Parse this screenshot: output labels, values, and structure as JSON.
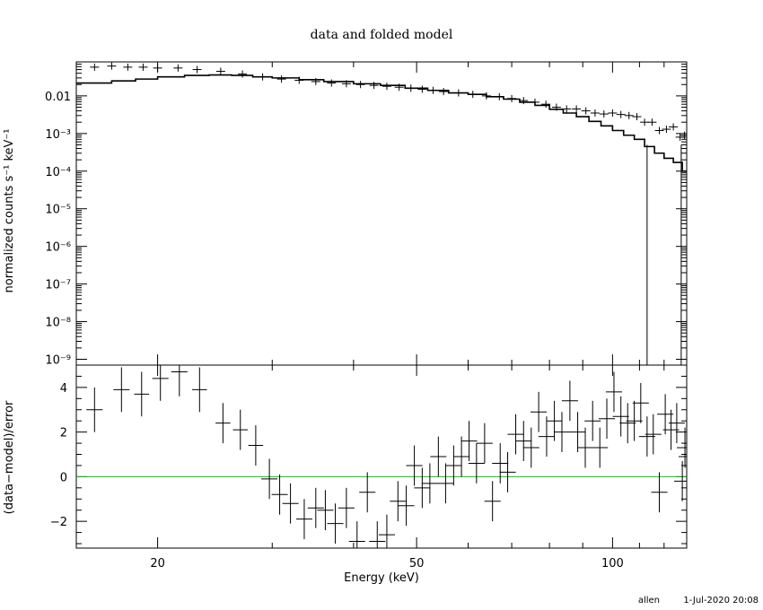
{
  "chart_data": [
    {
      "type": "scatter",
      "title": "data and folded model",
      "ylabel": "normalized counts s⁻¹ keV⁻¹",
      "xlabel": "",
      "xscale": "log",
      "yscale": "log",
      "xlim": [
        15,
        130
      ],
      "ylim": [
        7e-10,
        0.08
      ],
      "y_tick_labels": [
        "0.01",
        "10⁻³",
        "10⁻⁴",
        "10⁻⁵",
        "10⁻⁶",
        "10⁻⁷",
        "10⁻⁸",
        "10⁻⁹"
      ],
      "series": [
        {
          "role": "data",
          "points": [
            [
              16.0,
              0.058,
              0.6
            ],
            [
              17.0,
              0.062,
              0.6
            ],
            [
              18.0,
              0.058,
              0.5
            ],
            [
              19.0,
              0.058,
              0.5
            ],
            [
              20.0,
              0.055,
              0.5
            ],
            [
              21.5,
              0.055,
              0.5
            ],
            [
              23.0,
              0.05,
              0.5
            ],
            [
              25.0,
              0.045,
              0.5
            ],
            [
              27.0,
              0.038,
              0.5
            ],
            [
              29.0,
              0.032,
              0.5
            ],
            [
              31.0,
              0.028,
              0.5
            ],
            [
              33.0,
              0.026,
              0.5
            ],
            [
              35.0,
              0.024,
              0.5
            ],
            [
              37.0,
              0.022,
              0.5
            ],
            [
              39.0,
              0.021,
              0.5
            ],
            [
              41.0,
              0.02,
              0.5
            ],
            [
              43.0,
              0.019,
              0.5
            ],
            [
              45.0,
              0.018,
              0.5
            ],
            [
              47.0,
              0.017,
              0.5
            ],
            [
              49.0,
              0.016,
              0.5
            ],
            [
              51.0,
              0.015,
              0.5
            ],
            [
              53.0,
              0.014,
              0.5
            ],
            [
              55.0,
              0.013,
              0.5
            ],
            [
              58.0,
              0.012,
              0.5
            ],
            [
              61.0,
              0.011,
              0.5
            ],
            [
              64.0,
              0.01,
              0.5
            ],
            [
              67.0,
              0.0095,
              0.5
            ],
            [
              70.0,
              0.0085,
              0.5
            ],
            [
              73.0,
              0.0075,
              0.5
            ],
            [
              76.0,
              0.0068,
              0.5
            ],
            [
              79.0,
              0.006,
              0.5
            ],
            [
              82.0,
              0.005,
              0.6
            ],
            [
              85.0,
              0.0045,
              0.6
            ],
            [
              88.0,
              0.0045,
              0.6
            ],
            [
              91.0,
              0.004,
              0.6
            ],
            [
              94.0,
              0.0035,
              0.6
            ],
            [
              97.0,
              0.0033,
              0.6
            ],
            [
              100.0,
              0.0035,
              0.6
            ],
            [
              103.0,
              0.0032,
              0.6
            ],
            [
              106.0,
              0.003,
              0.6
            ],
            [
              109.0,
              0.0028,
              0.6
            ],
            [
              112.0,
              0.002,
              0.6
            ],
            [
              115.0,
              0.002,
              0.6
            ],
            [
              118.0,
              0.0012,
              0.6
            ],
            [
              121.0,
              0.0013,
              0.6
            ],
            [
              124.0,
              0.0015,
              0.6
            ],
            [
              127.0,
              0.0008,
              0.6
            ],
            [
              129.0,
              0.0009,
              0.6
            ]
          ]
        },
        {
          "role": "model",
          "steps": [
            [
              15.0,
              0.022
            ],
            [
              17.0,
              0.025
            ],
            [
              18.5,
              0.028
            ],
            [
              20.0,
              0.032
            ],
            [
              22.0,
              0.035
            ],
            [
              24.0,
              0.036
            ],
            [
              26.0,
              0.035
            ],
            [
              28.0,
              0.032
            ],
            [
              30.0,
              0.03
            ],
            [
              33.0,
              0.027
            ],
            [
              36.0,
              0.024
            ],
            [
              40.0,
              0.021
            ],
            [
              44.0,
              0.019
            ],
            [
              48.0,
              0.016
            ],
            [
              52.0,
              0.014
            ],
            [
              56.0,
              0.012
            ],
            [
              60.0,
              0.011
            ],
            [
              64.0,
              0.0095
            ],
            [
              68.0,
              0.0082
            ],
            [
              72.0,
              0.0068
            ],
            [
              76.0,
              0.0056
            ],
            [
              80.0,
              0.0044
            ],
            [
              84.0,
              0.0035
            ],
            [
              88.0,
              0.0028
            ],
            [
              92.0,
              0.0021
            ],
            [
              96.0,
              0.0016
            ],
            [
              100.0,
              0.0012
            ],
            [
              104.0,
              0.0009
            ],
            [
              108.0,
              0.0007
            ],
            [
              112.0,
              0.00045
            ],
            [
              116.0,
              0.0003
            ],
            [
              120.0,
              0.00022
            ],
            [
              124.0,
              0.00017
            ],
            [
              128.0,
              0.0001
            ],
            [
              130.0,
              0.0001
            ]
          ],
          "dropouts": [
            113.0,
            127.5
          ]
        }
      ]
    },
    {
      "type": "scatter",
      "xlabel": "Energy (keV)",
      "ylabel": "(data−model)/error",
      "xscale": "log",
      "xlim": [
        15,
        130
      ],
      "ylim": [
        -3.2,
        5.0
      ],
      "x_ticks": [
        {
          "value": 20,
          "label": "20"
        },
        {
          "value": 50,
          "label": "50"
        },
        {
          "value": 100,
          "label": "100"
        }
      ],
      "y_ticks": [
        {
          "value": 4,
          "label": "4"
        },
        {
          "value": 2,
          "label": "2"
        },
        {
          "value": 0,
          "label": "0"
        },
        {
          "value": -2,
          "label": "−2"
        }
      ],
      "zero_line_color": "#00cc00",
      "series": [
        {
          "role": "residuals",
          "points": [
            [
              16.0,
              3.0,
              1.0,
              0.6
            ],
            [
              17.6,
              3.9,
              1.0,
              0.6
            ],
            [
              18.9,
              3.7,
              1.0,
              0.55
            ],
            [
              20.2,
              4.4,
              1.0,
              0.6
            ],
            [
              21.6,
              4.7,
              1.1,
              0.6
            ],
            [
              23.2,
              3.9,
              1.0,
              0.55
            ],
            [
              25.2,
              2.4,
              0.9,
              0.55
            ],
            [
              26.8,
              2.1,
              0.9,
              0.55
            ],
            [
              28.3,
              1.4,
              0.9,
              0.55
            ],
            [
              29.7,
              -0.1,
              0.9,
              0.6
            ],
            [
              30.8,
              -0.8,
              0.9,
              0.6
            ],
            [
              32.0,
              -1.2,
              0.9,
              0.6
            ],
            [
              33.6,
              -1.9,
              0.9,
              0.6
            ],
            [
              35.0,
              -1.4,
              0.9,
              0.6
            ],
            [
              36.2,
              -1.5,
              0.9,
              0.6
            ],
            [
              37.5,
              -2.1,
              0.9,
              0.6
            ],
            [
              39.0,
              -1.4,
              0.9,
              0.6
            ],
            [
              40.5,
              -2.9,
              0.9,
              0.6
            ],
            [
              42.0,
              -0.7,
              0.9,
              0.6
            ],
            [
              43.5,
              -2.9,
              0.9,
              0.6
            ],
            [
              45.0,
              -2.6,
              0.9,
              0.6
            ],
            [
              46.8,
              -1.1,
              0.9,
              0.6
            ],
            [
              48.2,
              -1.3,
              0.9,
              0.6
            ],
            [
              49.6,
              0.5,
              0.9,
              0.6
            ],
            [
              51.0,
              -0.5,
              0.9,
              0.6
            ],
            [
              52.4,
              -0.3,
              0.9,
              0.6
            ],
            [
              54.0,
              0.9,
              0.9,
              0.6
            ],
            [
              55.4,
              -0.3,
              0.9,
              0.6
            ],
            [
              57.0,
              0.5,
              0.9,
              0.6
            ],
            [
              58.6,
              0.9,
              0.9,
              0.6
            ],
            [
              60.2,
              1.6,
              0.9,
              0.6
            ],
            [
              61.8,
              0.6,
              0.9,
              0.6
            ],
            [
              63.6,
              1.5,
              0.9,
              0.6
            ],
            [
              65.4,
              -1.1,
              0.9,
              0.6
            ],
            [
              67.2,
              0.6,
              0.9,
              0.6
            ],
            [
              69.0,
              0.2,
              0.9,
              0.6
            ],
            [
              71.0,
              1.9,
              0.9,
              0.6
            ],
            [
              73.0,
              1.6,
              0.9,
              0.6
            ],
            [
              75.0,
              1.3,
              0.9,
              0.6
            ],
            [
              77.0,
              2.9,
              0.9,
              0.6
            ],
            [
              79.2,
              1.8,
              0.9,
              0.6
            ],
            [
              81.4,
              2.5,
              0.9,
              0.6
            ],
            [
              83.6,
              2.0,
              0.9,
              0.6
            ],
            [
              86.0,
              3.4,
              0.9,
              0.6
            ],
            [
              88.4,
              2.0,
              0.9,
              0.6
            ],
            [
              90.8,
              1.3,
              0.9,
              0.6
            ],
            [
              93.2,
              2.5,
              0.9,
              0.6
            ],
            [
              95.6,
              1.3,
              0.9,
              0.6
            ],
            [
              98.0,
              2.6,
              0.9,
              0.6
            ],
            [
              100.5,
              3.8,
              0.9,
              0.6
            ],
            [
              103.0,
              2.7,
              0.9,
              0.6
            ],
            [
              105.5,
              2.4,
              0.9,
              0.6
            ],
            [
              108.0,
              2.5,
              0.9,
              0.6
            ],
            [
              110.5,
              3.3,
              0.9,
              0.6
            ],
            [
              113.0,
              1.8,
              0.9,
              0.6
            ],
            [
              115.5,
              1.9,
              0.9,
              0.6
            ],
            [
              118.0,
              -0.7,
              0.9,
              0.6
            ],
            [
              120.5,
              2.8,
              0.9,
              0.6
            ],
            [
              123.0,
              2.1,
              0.9,
              0.6
            ],
            [
              125.5,
              2.4,
              0.9,
              0.6
            ],
            [
              128.0,
              -0.2,
              0.9,
              0.6
            ],
            [
              129.2,
              1.3,
              0.9,
              0.6
            ],
            [
              130.0,
              0.9,
              0.9,
              0.6
            ]
          ]
        }
      ]
    }
  ],
  "footer": {
    "user": "allen",
    "timestamp": "1-Jul-2020 20:08"
  }
}
